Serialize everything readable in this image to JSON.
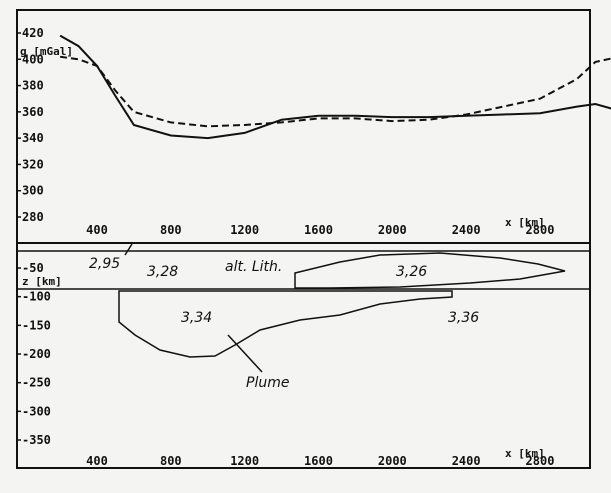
{
  "gravity_panel": {
    "ylabel": "g [mGal]",
    "ytick_labels": [
      "420",
      "400",
      "380",
      "360",
      "340",
      "320",
      "300",
      "280"
    ],
    "xtick_labels": [
      "400",
      "800",
      "1200",
      "1600",
      "2000",
      "2400",
      "2800"
    ],
    "xlabel": "x [km]"
  },
  "depth_panel": {
    "ylabel": "z [km]",
    "ytick_labels": [
      "-50",
      "-100",
      "-150",
      "-200",
      "-250",
      "-300",
      "-350"
    ],
    "xtick_labels": [
      "400",
      "800",
      "1200",
      "1600",
      "2000",
      "2400",
      "2800"
    ],
    "xlabel": "x [km]"
  },
  "bodies": {
    "crust_density": "2,95",
    "lithosphere_density": "3,28",
    "altered_lith_label": "alt. Lith.",
    "altered_lith_density": "3,26",
    "plume_density": "3,34",
    "mantle_density": "3,36",
    "plume_label": "Plume"
  },
  "chart_data": {
    "type": "line",
    "x_unit": "km",
    "y_unit": "mGal",
    "ylim": [
      280,
      420
    ],
    "series": [
      {
        "style": "solid",
        "points": [
          [
            200,
            418
          ],
          [
            300,
            410
          ],
          [
            400,
            395
          ],
          [
            500,
            372
          ],
          [
            600,
            350
          ],
          [
            800,
            342
          ],
          [
            1000,
            340
          ],
          [
            1200,
            344
          ],
          [
            1400,
            354
          ],
          [
            1600,
            357
          ],
          [
            1800,
            357
          ],
          [
            2000,
            356
          ],
          [
            2200,
            356
          ],
          [
            2400,
            357
          ],
          [
            2600,
            358
          ],
          [
            2800,
            359
          ],
          [
            3000,
            364
          ],
          [
            3100,
            366
          ],
          [
            3200,
            362
          ],
          [
            3300,
            358
          ]
        ]
      },
      {
        "style": "dashed",
        "points": [
          [
            200,
            402
          ],
          [
            300,
            400
          ],
          [
            400,
            395
          ],
          [
            500,
            376
          ],
          [
            600,
            360
          ],
          [
            800,
            352
          ],
          [
            1000,
            349
          ],
          [
            1200,
            350
          ],
          [
            1400,
            352
          ],
          [
            1600,
            355
          ],
          [
            1800,
            355
          ],
          [
            2000,
            353
          ],
          [
            2200,
            354
          ],
          [
            2400,
            358
          ],
          [
            2600,
            364
          ],
          [
            2800,
            370
          ],
          [
            3000,
            385
          ],
          [
            3100,
            398
          ],
          [
            3200,
            401
          ],
          [
            3300,
            402
          ]
        ]
      }
    ]
  }
}
